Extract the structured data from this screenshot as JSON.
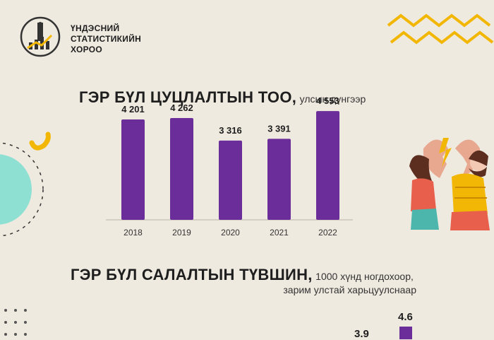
{
  "org": {
    "lines": [
      "ҮНДЭСНИЙ",
      "СТАТИСТИКИЙН",
      "ХОРОО"
    ]
  },
  "title1": {
    "main": "ГЭР БҮЛ ЦУЦЛАЛТЫН ТОО,",
    "sub": "улсын дүнгээр"
  },
  "title2": {
    "main": "ГЭР БҮЛ САЛАЛТЫН ТҮВШИН,",
    "sub": "1000 хүнд ногдохоор,",
    "sub2": "зарим улстай харьцуулснаар"
  },
  "bottom_values": [
    "3.9",
    "4.6"
  ],
  "colors": {
    "bar": "#6b2d9a",
    "background": "#efeae0",
    "accent_yellow": "#f2b705",
    "accent_teal": "#8ee0d2"
  },
  "chart_data": {
    "type": "bar",
    "categories": [
      "2018",
      "2019",
      "2020",
      "2021",
      "2022"
    ],
    "values": [
      4201,
      4262,
      3316,
      3391,
      4553
    ],
    "value_labels": [
      "4 201",
      "4 262",
      "3 316",
      "3 391",
      "4 553"
    ],
    "ylim": [
      0,
      5000
    ],
    "grid": false
  }
}
